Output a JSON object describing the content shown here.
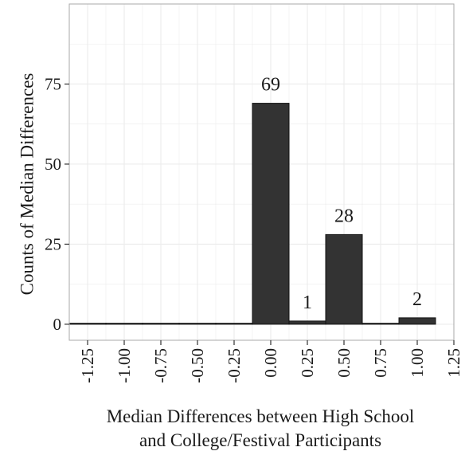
{
  "chart_data": {
    "type": "bar",
    "title": "",
    "xlabel_lines": [
      "Median Differences between High School",
      "and College/Festival Participants"
    ],
    "ylabel": "Counts of Median Differences",
    "x_ticks": [
      "-1.25",
      "-1.00",
      "-0.75",
      "-0.50",
      "-0.25",
      "0.00",
      "0.25",
      "0.50",
      "0.75",
      "1.00",
      "1.25"
    ],
    "y_ticks": [
      "0",
      "25",
      "50",
      "75"
    ],
    "xlim": [
      -1.375,
      1.25
    ],
    "ylim": [
      -5,
      100
    ],
    "bin_width": 0.25,
    "grid": true,
    "bars": [
      {
        "x": -1.25,
        "value": 0,
        "label": ""
      },
      {
        "x": -1.0,
        "value": 0,
        "label": ""
      },
      {
        "x": -0.75,
        "value": 0,
        "label": ""
      },
      {
        "x": -0.5,
        "value": 0,
        "label": ""
      },
      {
        "x": -0.25,
        "value": 0,
        "label": ""
      },
      {
        "x": 0.0,
        "value": 69,
        "label": "69"
      },
      {
        "x": 0.25,
        "value": 1,
        "label": "1"
      },
      {
        "x": 0.5,
        "value": 28,
        "label": "28"
      },
      {
        "x": 0.75,
        "value": 0,
        "label": ""
      },
      {
        "x": 1.0,
        "value": 2,
        "label": "2"
      }
    ],
    "colors": {
      "bar_fill": "#333333",
      "bar_stroke": "#111111",
      "grid": "#ececec",
      "panel_border": "#aaaaaa"
    }
  }
}
